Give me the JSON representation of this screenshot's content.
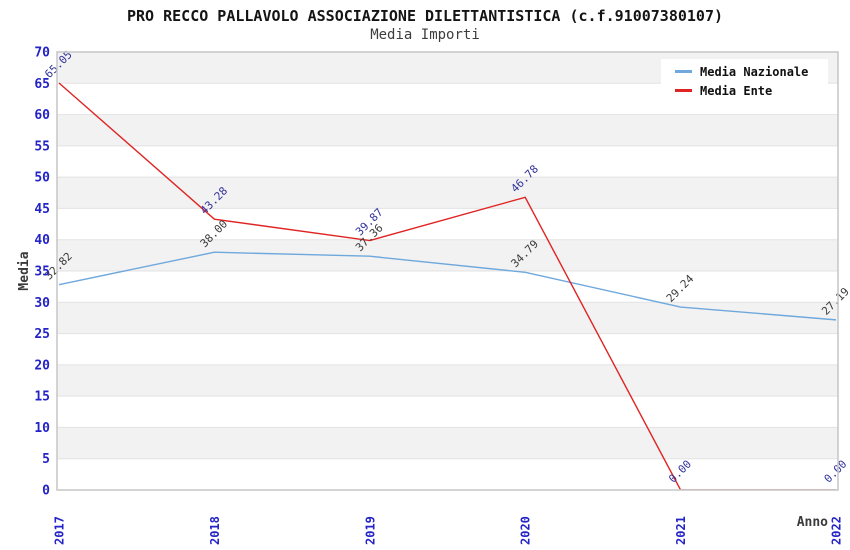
{
  "chart_data": {
    "type": "line",
    "title": "PRO RECCO PALLAVOLO ASSOCIAZIONE DILETTANTISTICA (c.f.91007380107)",
    "subtitle": "Media Importi",
    "xlabel": "Anno",
    "ylabel": "Media",
    "categories": [
      "2017",
      "2018",
      "2019",
      "2020",
      "2021",
      "2022"
    ],
    "ylim": [
      0,
      70
    ],
    "ytick_step": 5,
    "grid": "alternating-horizontal-bands",
    "legend_position": "top-right-inside",
    "series": [
      {
        "name": "Media Nazionale",
        "color": "#6fa8dc",
        "label_color": "#3b3b3b",
        "values": [
          32.82,
          38.0,
          37.36,
          34.79,
          29.24,
          27.19
        ],
        "labels": [
          "32.82",
          "38.00",
          "37.36",
          "34.79",
          "29.24",
          "27.19"
        ]
      },
      {
        "name": "Media Ente",
        "color": "#e02424",
        "label_color": "#32329b",
        "values": [
          65.05,
          43.28,
          39.87,
          46.78,
          0.0,
          0.0
        ],
        "labels": [
          "65.05",
          "43.28",
          "39.87",
          "46.78",
          "0.00",
          "0.00"
        ]
      }
    ],
    "colors": {
      "tick_label": "#2323c8",
      "band_gray": "#f2f2f2",
      "band_white": "#ffffff",
      "gridline": "#e3e3e3",
      "plot_border": "#c9c9c9",
      "legend_background": "#ffffff"
    }
  }
}
